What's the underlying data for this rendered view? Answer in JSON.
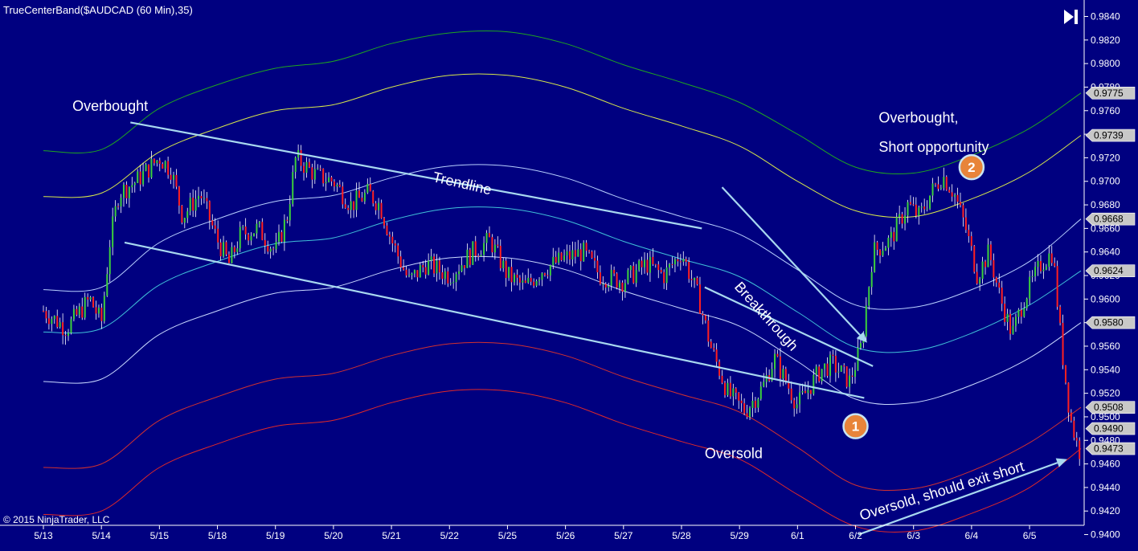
{
  "header": {
    "indicator_title": "TrueCenterBand($AUDCAD (60 Min),35)",
    "copyright": "© 2015 NinjaTrader, LLC",
    "end_button_icon": "skip-to-end-icon"
  },
  "colors": {
    "background": "#000080",
    "candle_up": "#3cd03c",
    "candle_down": "#ff2020",
    "band_outer_upper": "#1fa51f",
    "band_upper": "#d8e84a",
    "band_mid_upper": "#b8d0ff",
    "band_center": "#40c0d8",
    "band_mid_lower": "#c8d8ff",
    "band_lower": "#d03030",
    "band_outer_lower": "#e02828",
    "annotation": "#a8d8f0",
    "badge_fill": "#e8843a"
  },
  "chart_data": {
    "type": "candlestick",
    "instrument": "$AUDCAD",
    "interval": "60 Min",
    "x_ticks": [
      "5/13",
      "5/14",
      "5/15",
      "5/18",
      "5/19",
      "5/20",
      "5/21",
      "5/22",
      "5/25",
      "5/26",
      "5/27",
      "5/28",
      "5/29",
      "6/1",
      "6/2",
      "6/3",
      "6/4",
      "6/5"
    ],
    "y_ticks": [
      "0.9840",
      "0.9820",
      "0.9800",
      "0.9780",
      "0.9760",
      "0.9740",
      "0.9720",
      "0.9700",
      "0.9680",
      "0.9660",
      "0.9640",
      "0.9620",
      "0.9600",
      "0.9580",
      "0.9560",
      "0.9540",
      "0.9520",
      "0.9500",
      "0.9480",
      "0.9460",
      "0.9440",
      "0.9420",
      "0.9400"
    ],
    "ylim": [
      0.939,
      0.985
    ],
    "price_markers": [
      {
        "value": 0.9775,
        "label": "0.9775"
      },
      {
        "value": 0.9739,
        "label": "0.9739"
      },
      {
        "value": 0.9668,
        "label": "0.9668"
      },
      {
        "value": 0.9624,
        "label": "0.9624"
      },
      {
        "value": 0.958,
        "label": "0.9580"
      },
      {
        "value": 0.9508,
        "label": "0.9508"
      },
      {
        "value": 0.949,
        "label": "0.9490"
      },
      {
        "value": 0.9473,
        "label": "0.9473"
      }
    ],
    "close_path": [
      [
        5.0,
        0.959
      ],
      [
        5.4,
        0.9575
      ],
      [
        5.8,
        0.96
      ],
      [
        6.0,
        0.958
      ],
      [
        6.15,
        0.965
      ],
      [
        6.3,
        0.969
      ],
      [
        6.6,
        0.97
      ],
      [
        6.9,
        0.9715
      ],
      [
        7.0,
        0.972
      ],
      [
        7.2,
        0.971
      ],
      [
        7.4,
        0.967
      ],
      [
        7.7,
        0.969
      ],
      [
        8.0,
        0.965
      ],
      [
        8.2,
        0.963
      ],
      [
        8.4,
        0.9655
      ],
      [
        8.7,
        0.966
      ],
      [
        9.0,
        0.964
      ],
      [
        9.2,
        0.967
      ],
      [
        9.35,
        0.972
      ],
      [
        9.7,
        0.9705
      ],
      [
        10.0,
        0.97
      ],
      [
        10.3,
        0.968
      ],
      [
        10.6,
        0.969
      ],
      [
        10.8,
        0.968
      ],
      [
        11.0,
        0.965
      ],
      [
        11.3,
        0.9615
      ],
      [
        11.6,
        0.963
      ],
      [
        12.0,
        0.962
      ],
      [
        12.4,
        0.964
      ],
      [
        12.7,
        0.965
      ],
      [
        13.0,
        0.962
      ],
      [
        13.3,
        0.961
      ],
      [
        13.6,
        0.9625
      ],
      [
        14.0,
        0.9635
      ],
      [
        14.3,
        0.964
      ],
      [
        14.6,
        0.962
      ],
      [
        15.0,
        0.9615
      ],
      [
        15.4,
        0.963
      ],
      [
        15.7,
        0.962
      ],
      [
        16.0,
        0.964
      ],
      [
        16.3,
        0.96
      ],
      [
        16.5,
        0.956
      ],
      [
        16.8,
        0.952
      ],
      [
        17.1,
        0.9505
      ],
      [
        17.4,
        0.9525
      ],
      [
        17.6,
        0.955
      ],
      [
        17.8,
        0.953
      ],
      [
        18.0,
        0.951
      ],
      [
        18.2,
        0.9525
      ],
      [
        18.4,
        0.954
      ],
      [
        18.6,
        0.9545
      ],
      [
        18.9,
        0.953
      ],
      [
        19.1,
        0.956
      ],
      [
        19.3,
        0.964
      ],
      [
        19.6,
        0.965
      ],
      [
        19.9,
        0.968
      ],
      [
        20.1,
        0.967
      ],
      [
        20.3,
        0.969
      ],
      [
        20.5,
        0.9705
      ],
      [
        20.7,
        0.969
      ],
      [
        20.9,
        0.966
      ],
      [
        21.1,
        0.962
      ],
      [
        21.3,
        0.964
      ],
      [
        21.5,
        0.96
      ],
      [
        21.7,
        0.957
      ],
      [
        21.9,
        0.96
      ],
      [
        22.2,
        0.963
      ],
      [
        22.4,
        0.964
      ],
      [
        22.55,
        0.956
      ],
      [
        22.7,
        0.95
      ],
      [
        22.85,
        0.947
      ],
      [
        23.0,
        0.9485
      ],
      [
        23.1,
        0.949
      ]
    ],
    "bands": {
      "x": [
        5.0,
        6.0,
        7.0,
        8.0,
        9.0,
        10.0,
        11.0,
        12.0,
        13.0,
        14.0,
        15.0,
        16.0,
        17.0,
        18.0,
        19.0,
        20.0,
        21.0,
        22.0,
        23.0
      ],
      "upper_outer": [
        0.9726,
        0.9727,
        0.9762,
        0.9782,
        0.9796,
        0.9802,
        0.9817,
        0.9826,
        0.9827,
        0.9817,
        0.9799,
        0.9784,
        0.9767,
        0.974,
        0.9712,
        0.9707,
        0.9722,
        0.9745,
        0.9775
      ],
      "upper": [
        0.9687,
        0.969,
        0.9725,
        0.9745,
        0.976,
        0.9765,
        0.978,
        0.979,
        0.979,
        0.978,
        0.9762,
        0.9747,
        0.973,
        0.97,
        0.9675,
        0.967,
        0.9685,
        0.9708,
        0.9739
      ],
      "upper_mid": [
        0.9608,
        0.961,
        0.9648,
        0.9668,
        0.9683,
        0.9688,
        0.9703,
        0.9713,
        0.9713,
        0.9703,
        0.9685,
        0.967,
        0.9655,
        0.9625,
        0.9595,
        0.9593,
        0.9608,
        0.9632,
        0.9668
      ],
      "center": [
        0.9572,
        0.9575,
        0.9612,
        0.9632,
        0.9647,
        0.9652,
        0.9667,
        0.9677,
        0.9677,
        0.9667,
        0.9649,
        0.9634,
        0.9619,
        0.9589,
        0.9559,
        0.9556,
        0.9571,
        0.9595,
        0.9624
      ],
      "lower_mid": [
        0.953,
        0.9532,
        0.957,
        0.959,
        0.9605,
        0.961,
        0.9625,
        0.9635,
        0.9635,
        0.9625,
        0.9607,
        0.9592,
        0.9577,
        0.9547,
        0.9515,
        0.9512,
        0.9527,
        0.955,
        0.958
      ],
      "lower": [
        0.9457,
        0.946,
        0.9497,
        0.9517,
        0.9532,
        0.9537,
        0.9552,
        0.9562,
        0.9562,
        0.9552,
        0.9534,
        0.9519,
        0.9504,
        0.9474,
        0.9442,
        0.9439,
        0.9454,
        0.9478,
        0.9508
      ],
      "lower_outer": [
        0.9417,
        0.942,
        0.9457,
        0.9477,
        0.9492,
        0.9497,
        0.9512,
        0.9522,
        0.9522,
        0.9512,
        0.9494,
        0.9479,
        0.9464,
        0.9434,
        0.9407,
        0.9403,
        0.9418,
        0.944,
        0.9473
      ]
    },
    "trendlines": [
      {
        "name": "upper-trendline",
        "points": [
          [
            6.5,
            0.975
          ],
          [
            16.35,
            0.966
          ]
        ]
      },
      {
        "name": "lower-trendline",
        "points": [
          [
            6.4,
            0.9648
          ],
          [
            19.15,
            0.9516
          ]
        ]
      },
      {
        "name": "breakthrough-trendline",
        "points": [
          [
            16.4,
            0.961
          ],
          [
            19.3,
            0.9543
          ]
        ]
      }
    ],
    "arrows": [
      {
        "name": "breakthrough-arrow",
        "from": [
          16.7,
          0.9695
        ],
        "to": [
          19.2,
          0.9563
        ]
      },
      {
        "name": "oversold-exit-arrow",
        "from": [
          19.05,
          0.94
        ],
        "to": [
          22.65,
          0.9464
        ]
      }
    ],
    "annotations": [
      {
        "name": "overbought-label",
        "text": "Overbought",
        "x": 5.5,
        "y": 0.976,
        "angle": 0
      },
      {
        "name": "trendline-label",
        "text": "Trendline",
        "x": 11.7,
        "y": 0.97,
        "angle": 13
      },
      {
        "name": "breakthrough-label",
        "text": "Breakthrough",
        "x": 16.9,
        "y": 0.961,
        "angle": 48
      },
      {
        "name": "oversold-label",
        "text": "Oversold",
        "x": 16.4,
        "y": 0.9465,
        "angle": 0
      },
      {
        "name": "short-opportunity-label-line1",
        "text": "Overbought,",
        "x": 19.4,
        "y": 0.975,
        "angle": 0
      },
      {
        "name": "short-opportunity-label-line2",
        "text": "Short opportunity",
        "x": 19.4,
        "y": 0.9725,
        "angle": 0
      },
      {
        "name": "exit-short-label",
        "text": "Oversold, should exit short",
        "x": 19.1,
        "y": 0.9412,
        "angle": -17
      }
    ],
    "badges": [
      {
        "name": "badge-1",
        "label": "1",
        "x": 19.0,
        "y": 0.9492
      },
      {
        "name": "badge-2",
        "label": "2",
        "x": 21.0,
        "y": 0.9712
      }
    ]
  }
}
